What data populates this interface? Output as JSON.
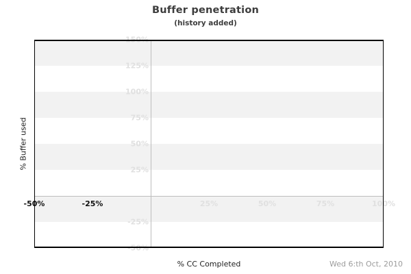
{
  "header": {
    "title": "Buffer penetration",
    "subtitle": "(history added)"
  },
  "footer": {
    "date": "Wed 6:th Oct, 2010"
  },
  "colors": {
    "band_gray": "#f2f2f2",
    "band_white": "#ffffff",
    "grid_line": "#bdbdbd",
    "tick_light": "#e0e0e0",
    "tick_dark": "#111111",
    "border": "#000000",
    "title_text": "#3d3d3d",
    "date_text": "#9c9c9c"
  },
  "chart_data": {
    "type": "line",
    "title": "Buffer penetration",
    "subtitle": "(history added)",
    "xlabel": "% CC Completed",
    "ylabel": "% Buffer used",
    "xlim": [
      -50,
      100
    ],
    "ylim": [
      -50,
      150
    ],
    "grid": "horizontal-bands",
    "legend": "none",
    "series": [],
    "axis_lines": {
      "x": 0,
      "y": 0
    },
    "bands": {
      "interval": 25,
      "colors": [
        "#f2f2f2",
        "#ffffff"
      ]
    },
    "x_ticks": [
      {
        "value": -50,
        "label": "-50%",
        "strong": true
      },
      {
        "value": -25,
        "label": "-25%",
        "strong": true
      },
      {
        "value": 25,
        "label": "25%",
        "strong": false
      },
      {
        "value": 50,
        "label": "50%",
        "strong": false
      },
      {
        "value": 75,
        "label": "75%",
        "strong": false
      },
      {
        "value": 100,
        "label": "100%",
        "strong": false
      }
    ],
    "y_ticks": [
      {
        "value": 150,
        "label": "150%"
      },
      {
        "value": 125,
        "label": "125%"
      },
      {
        "value": 100,
        "label": "100%"
      },
      {
        "value": 75,
        "label": "75%"
      },
      {
        "value": 50,
        "label": "50%"
      },
      {
        "value": 25,
        "label": "25%"
      },
      {
        "value": -25,
        "label": "-25%"
      },
      {
        "value": -50,
        "label": "-50%"
      }
    ]
  }
}
